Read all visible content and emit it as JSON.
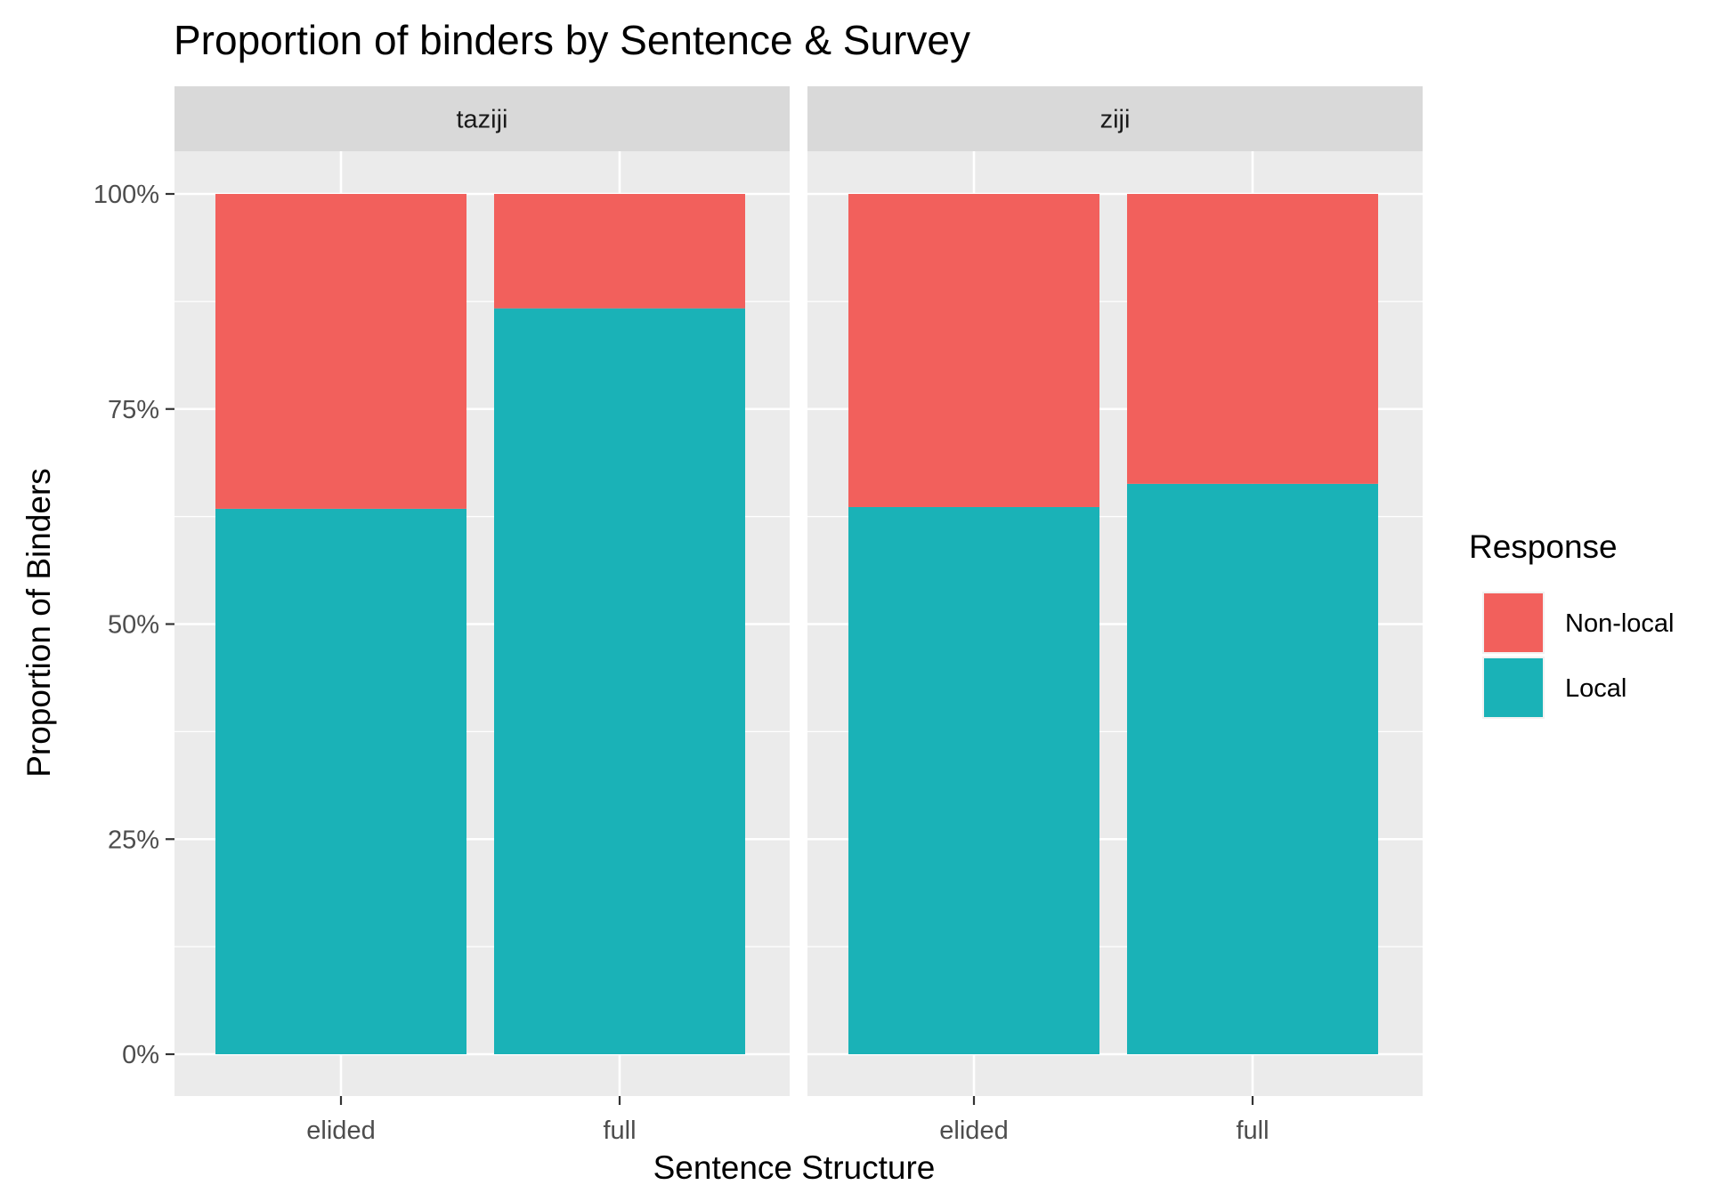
{
  "chart_data": {
    "type": "bar",
    "stacked": true,
    "title": "Proportion of binders by Sentence & Survey",
    "xlabel": "Sentence Structure",
    "ylabel": "Proportion of Binders",
    "ylim": [
      0,
      100
    ],
    "yticks": [
      "0%",
      "25%",
      "50%",
      "75%",
      "100%"
    ],
    "ytick_values": [
      0,
      25,
      50,
      75,
      100
    ],
    "categories": [
      "elided",
      "full"
    ],
    "legend": {
      "title": "Response",
      "position": "right",
      "entries": [
        "Non-local",
        "Local"
      ]
    },
    "colors": {
      "Non-local": "#F2605C",
      "Local": "#1AB2B7"
    },
    "panels": [
      {
        "name": "taziji",
        "series": [
          {
            "name": "Local",
            "values": [
              63.4,
              86.7
            ]
          },
          {
            "name": "Non-local",
            "values": [
              36.6,
              13.3
            ]
          }
        ]
      },
      {
        "name": "ziji",
        "series": [
          {
            "name": "Local",
            "values": [
              63.6,
              66.3
            ]
          },
          {
            "name": "Non-local",
            "values": [
              36.4,
              33.7
            ]
          }
        ]
      }
    ],
    "grid": true
  }
}
